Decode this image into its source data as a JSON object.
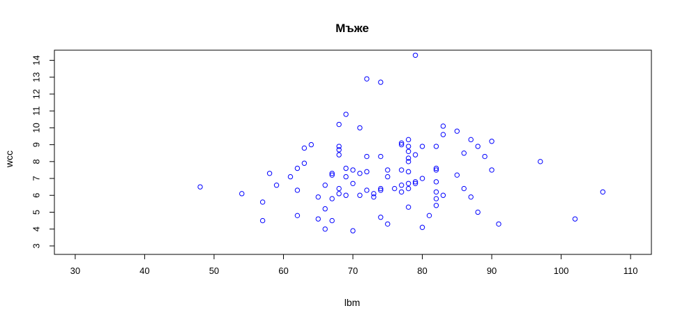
{
  "chart_data": {
    "type": "scatter",
    "title": "Мъже",
    "xlabel": "lbm",
    "ylabel": "wcc",
    "xlim": [
      27,
      113
    ],
    "ylim": [
      2.5,
      14.6
    ],
    "xticks": [
      30,
      40,
      50,
      60,
      70,
      80,
      90,
      100,
      110
    ],
    "yticks": [
      3,
      4,
      5,
      6,
      7,
      8,
      9,
      10,
      11,
      12,
      13,
      14
    ],
    "grid": false,
    "point_color": "#0000ff",
    "points": [
      [
        48,
        6.5
      ],
      [
        54,
        6.1
      ],
      [
        57,
        5.6
      ],
      [
        57,
        4.5
      ],
      [
        58,
        7.3
      ],
      [
        59,
        6.6
      ],
      [
        61,
        7.1
      ],
      [
        62,
        7.6
      ],
      [
        62,
        6.3
      ],
      [
        62,
        4.8
      ],
      [
        63,
        8.8
      ],
      [
        63,
        7.9
      ],
      [
        64,
        9.0
      ],
      [
        65,
        5.9
      ],
      [
        65,
        4.6
      ],
      [
        66,
        6.6
      ],
      [
        66,
        5.2
      ],
      [
        66,
        4.0
      ],
      [
        67,
        7.3
      ],
      [
        67,
        7.2
      ],
      [
        67,
        5.8
      ],
      [
        67,
        4.5
      ],
      [
        68,
        10.2
      ],
      [
        68,
        8.9
      ],
      [
        68,
        8.7
      ],
      [
        68,
        8.4
      ],
      [
        68,
        6.4
      ],
      [
        68,
        6.1
      ],
      [
        69,
        10.8
      ],
      [
        69,
        7.6
      ],
      [
        69,
        7.1
      ],
      [
        69,
        6.0
      ],
      [
        70,
        7.5
      ],
      [
        70,
        6.7
      ],
      [
        70,
        3.9
      ],
      [
        71,
        10.0
      ],
      [
        71,
        7.3
      ],
      [
        71,
        6.0
      ],
      [
        72,
        12.9
      ],
      [
        72,
        8.3
      ],
      [
        72,
        7.4
      ],
      [
        72,
        6.3
      ],
      [
        73,
        6.1
      ],
      [
        73,
        5.9
      ],
      [
        74,
        12.7
      ],
      [
        74,
        8.3
      ],
      [
        74,
        6.4
      ],
      [
        74,
        6.3
      ],
      [
        74,
        4.7
      ],
      [
        75,
        7.5
      ],
      [
        75,
        7.1
      ],
      [
        75,
        4.3
      ],
      [
        76,
        6.4
      ],
      [
        77,
        9.1
      ],
      [
        77,
        9.0
      ],
      [
        77,
        7.5
      ],
      [
        77,
        6.6
      ],
      [
        77,
        6.2
      ],
      [
        78,
        9.3
      ],
      [
        78,
        8.9
      ],
      [
        78,
        8.6
      ],
      [
        78,
        8.2
      ],
      [
        78,
        8.0
      ],
      [
        78,
        7.4
      ],
      [
        78,
        6.7
      ],
      [
        78,
        6.4
      ],
      [
        78,
        5.3
      ],
      [
        79,
        14.3
      ],
      [
        79,
        8.4
      ],
      [
        79,
        6.8
      ],
      [
        79,
        6.7
      ],
      [
        80,
        8.9
      ],
      [
        80,
        7.0
      ],
      [
        80,
        4.1
      ],
      [
        81,
        4.8
      ],
      [
        82,
        8.9
      ],
      [
        82,
        7.6
      ],
      [
        82,
        7.5
      ],
      [
        82,
        6.8
      ],
      [
        82,
        6.2
      ],
      [
        82,
        5.8
      ],
      [
        82,
        5.4
      ],
      [
        83,
        10.1
      ],
      [
        83,
        9.6
      ],
      [
        83,
        6.0
      ],
      [
        85,
        9.8
      ],
      [
        85,
        7.2
      ],
      [
        86,
        8.5
      ],
      [
        86,
        6.4
      ],
      [
        87,
        9.3
      ],
      [
        87,
        5.9
      ],
      [
        88,
        8.9
      ],
      [
        88,
        5.0
      ],
      [
        89,
        8.3
      ],
      [
        90,
        9.2
      ],
      [
        90,
        7.5
      ],
      [
        91,
        4.3
      ],
      [
        97,
        8.0
      ],
      [
        102,
        4.6
      ],
      [
        106,
        6.2
      ]
    ]
  }
}
